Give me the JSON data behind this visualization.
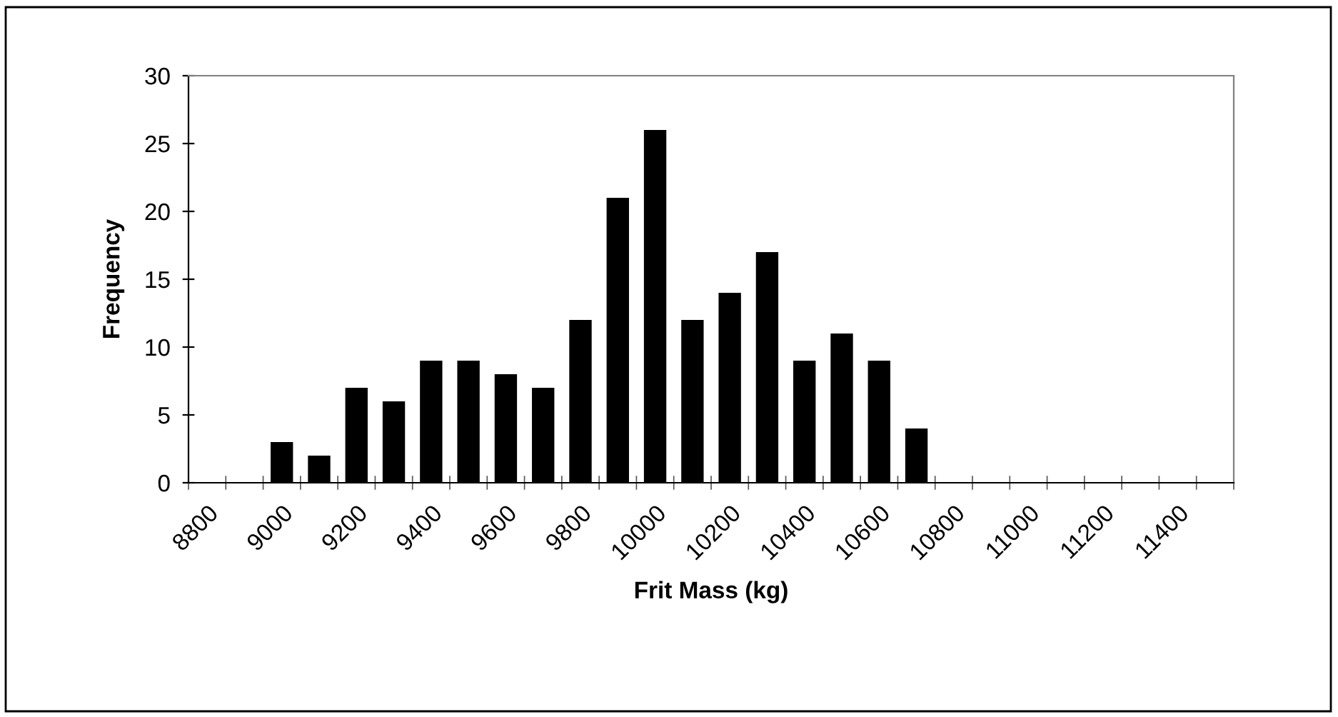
{
  "chart_data": {
    "type": "bar",
    "xlabel": "Frit Mass (kg)",
    "ylabel": "Frequency",
    "categories": [
      "8800",
      null,
      "9000",
      null,
      "9200",
      null,
      "9400",
      null,
      "9600",
      null,
      "9800",
      null,
      "10000",
      null,
      "10200",
      null,
      "10400",
      null,
      "10600",
      null,
      "10800",
      null,
      "11000",
      null,
      "11200",
      null,
      "11400",
      null
    ],
    "values": [
      0,
      0,
      3,
      2,
      7,
      6,
      9,
      9,
      8,
      7,
      12,
      21,
      26,
      12,
      14,
      17,
      9,
      11,
      9,
      4,
      0,
      0,
      0,
      0,
      0,
      0,
      0,
      0
    ],
    "color": "#000000",
    "ylim": [
      0,
      30
    ],
    "yticks": [
      0,
      5,
      10,
      15,
      20,
      25,
      30
    ],
    "grid": false,
    "legend": false
  }
}
